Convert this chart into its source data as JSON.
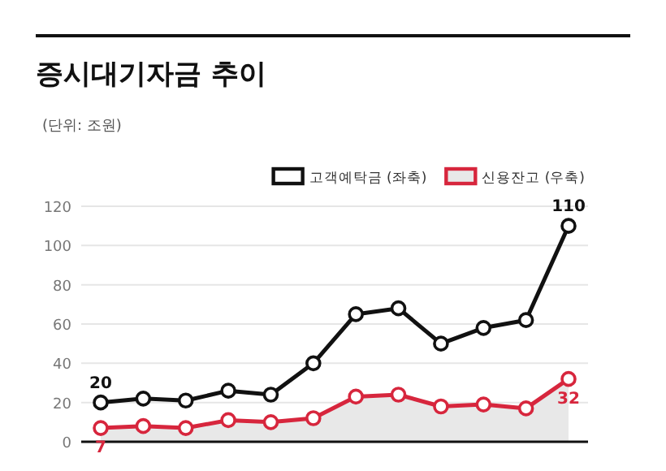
{
  "chart_data": {
    "type": "line",
    "title": "증시대기자금 추이",
    "subtitle": "(단위: 조원)",
    "categories": [
      null,
      null,
      null,
      null,
      null,
      null,
      null,
      null,
      null,
      null,
      null,
      null
    ],
    "series": [
      {
        "name": "고객예탁금 (좌축)",
        "color": "#111111",
        "values": [
          20,
          22,
          21,
          26,
          24,
          40,
          65,
          68,
          50,
          58,
          62,
          110
        ],
        "value_labels": [
          "20",
          null,
          null,
          null,
          null,
          null,
          null,
          null,
          null,
          null,
          null,
          "110"
        ]
      },
      {
        "name": "신용잔고 (우축)",
        "type": "area",
        "color": "#d7263d",
        "values": [
          7,
          8,
          7,
          11,
          10,
          12,
          23,
          24,
          18,
          19,
          17,
          32
        ],
        "value_labels": [
          "7",
          null,
          null,
          null,
          null,
          null,
          null,
          null,
          null,
          null,
          null,
          "32"
        ]
      }
    ],
    "ylim": [
      0,
      120
    ],
    "yticks": [
      0,
      20,
      40,
      60,
      80,
      100,
      120
    ],
    "grid": "y",
    "legend": "top right",
    "marker": "circle"
  }
}
